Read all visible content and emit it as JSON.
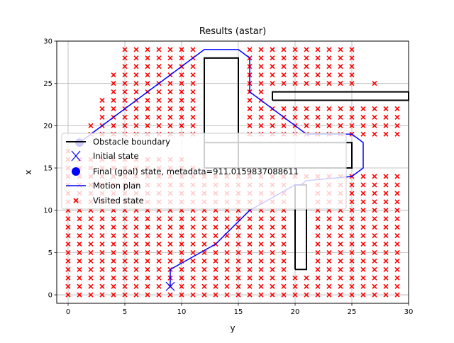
{
  "chart_data": {
    "type": "scatter",
    "title": "Results (astar)",
    "xlabel": "y",
    "ylabel": "x",
    "xlim": [
      -1,
      30
    ],
    "ylim": [
      -1,
      30
    ],
    "xticks": [
      0,
      5,
      10,
      15,
      20,
      25,
      30
    ],
    "yticks": [
      0,
      5,
      10,
      15,
      20,
      25,
      30
    ],
    "xtick_labels": [
      "0",
      "5",
      "10",
      "15",
      "20",
      "25",
      "30"
    ],
    "ytick_labels": [
      "0",
      "5",
      "10",
      "15",
      "20",
      "25",
      "30"
    ],
    "grid": true,
    "legend_position": "center-left",
    "legend": [
      "Obstacle boundary",
      "Initial state",
      "Final (goal) state, metadata=911.0159837088611",
      "Motion plan",
      "Visited state"
    ],
    "colors": {
      "obstacle": "#000000",
      "initial": "#0000ff",
      "goal": "#0000ff",
      "plan": "#0000ff",
      "visited": "#ff0000"
    },
    "obstacles": [
      [
        [
          12,
          15
        ],
        [
          15,
          15
        ],
        [
          15,
          28
        ],
        [
          12,
          28
        ],
        [
          12,
          15
        ]
      ],
      [
        [
          12,
          15
        ],
        [
          25,
          15
        ],
        [
          25,
          18
        ],
        [
          12,
          18
        ],
        [
          12,
          15
        ]
      ],
      [
        [
          18,
          23
        ],
        [
          30,
          23
        ],
        [
          30,
          24
        ],
        [
          18,
          24
        ],
        [
          18,
          23
        ]
      ],
      [
        [
          20,
          3
        ],
        [
          21,
          3
        ],
        [
          21,
          13
        ],
        [
          20,
          13
        ],
        [
          20,
          3
        ]
      ]
    ],
    "initial_state": [
      9,
      1
    ],
    "goal_state": [
      1,
      18
    ],
    "motion_plan": [
      [
        9,
        1
      ],
      [
        9,
        3
      ],
      [
        13,
        6
      ],
      [
        16,
        10
      ],
      [
        20,
        13
      ],
      [
        20.5,
        13
      ],
      [
        21,
        13.5
      ],
      [
        25,
        14
      ],
      [
        26,
        15
      ],
      [
        26,
        18
      ],
      [
        25,
        19
      ],
      [
        21,
        19
      ],
      [
        16,
        24
      ],
      [
        16,
        28
      ],
      [
        15,
        29
      ],
      [
        12,
        29
      ],
      [
        1,
        18
      ]
    ],
    "visited_runs": [
      {
        "x": 0,
        "ranges": [
          [
            0,
            17
          ]
        ]
      },
      {
        "x": 1,
        "ranges": [
          [
            0,
            16
          ]
        ]
      },
      {
        "x": 2,
        "ranges": [
          [
            0,
            16
          ],
          [
            19,
            20
          ]
        ]
      },
      {
        "x": 3,
        "ranges": [
          [
            0,
            16
          ],
          [
            19,
            23
          ]
        ]
      },
      {
        "x": 4,
        "ranges": [
          [
            0,
            16
          ],
          [
            19,
            26
          ]
        ]
      },
      {
        "x": 5,
        "ranges": [
          [
            0,
            16
          ],
          [
            19,
            29
          ]
        ]
      },
      {
        "x": 6,
        "ranges": [
          [
            0,
            16
          ],
          [
            19,
            29
          ]
        ]
      },
      {
        "x": 7,
        "ranges": [
          [
            0,
            16
          ],
          [
            19,
            29
          ]
        ]
      },
      {
        "x": 8,
        "ranges": [
          [
            0,
            16
          ],
          [
            19,
            29
          ]
        ]
      },
      {
        "x": 9,
        "ranges": [
          [
            0,
            16
          ],
          [
            19,
            29
          ]
        ]
      },
      {
        "x": 10,
        "ranges": [
          [
            0,
            16
          ],
          [
            19,
            29
          ]
        ]
      },
      {
        "x": 11,
        "ranges": [
          [
            0,
            15
          ],
          [
            19,
            29
          ]
        ]
      },
      {
        "x": 12,
        "ranges": [
          [
            0,
            14
          ]
        ]
      },
      {
        "x": 13,
        "ranges": [
          [
            0,
            14
          ]
        ]
      },
      {
        "x": 14,
        "ranges": [
          [
            0,
            14
          ]
        ]
      },
      {
        "x": 15,
        "ranges": [
          [
            0,
            14
          ]
        ]
      },
      {
        "x": 16,
        "ranges": [
          [
            0,
            14
          ],
          [
            19,
            29
          ]
        ]
      },
      {
        "x": 17,
        "ranges": [
          [
            0,
            14
          ],
          [
            19,
            29
          ]
        ]
      },
      {
        "x": 18,
        "ranges": [
          [
            0,
            14
          ],
          [
            19,
            22
          ],
          [
            25,
            29
          ]
        ]
      },
      {
        "x": 19,
        "ranges": [
          [
            0,
            14
          ],
          [
            19,
            22
          ],
          [
            25,
            29
          ]
        ]
      },
      {
        "x": 20,
        "ranges": [
          [
            0,
            2
          ],
          [
            14,
            14
          ],
          [
            19,
            22
          ],
          [
            25,
            29
          ]
        ]
      },
      {
        "x": 21,
        "ranges": [
          [
            0,
            2
          ],
          [
            14,
            14
          ],
          [
            19,
            22
          ],
          [
            25,
            29
          ]
        ]
      },
      {
        "x": 22,
        "ranges": [
          [
            0,
            14
          ],
          [
            19,
            22
          ],
          [
            25,
            29
          ]
        ]
      },
      {
        "x": 23,
        "ranges": [
          [
            0,
            14
          ],
          [
            19,
            22
          ],
          [
            25,
            29
          ]
        ]
      },
      {
        "x": 24,
        "ranges": [
          [
            0,
            14
          ],
          [
            19,
            22
          ],
          [
            25,
            29
          ]
        ]
      },
      {
        "x": 25,
        "ranges": [
          [
            0,
            14
          ],
          [
            19,
            22
          ],
          [
            25,
            29
          ]
        ]
      },
      {
        "x": 26,
        "ranges": [
          [
            0,
            14
          ],
          [
            19,
            22
          ]
        ]
      },
      {
        "x": 27,
        "ranges": [
          [
            0,
            14
          ],
          [
            19,
            22
          ],
          [
            25,
            25
          ]
        ]
      },
      {
        "x": 28,
        "ranges": [
          [
            0,
            14
          ],
          [
            19,
            22
          ]
        ]
      },
      {
        "x": 29,
        "ranges": [
          [
            0,
            14
          ],
          [
            19,
            22
          ]
        ]
      }
    ]
  }
}
